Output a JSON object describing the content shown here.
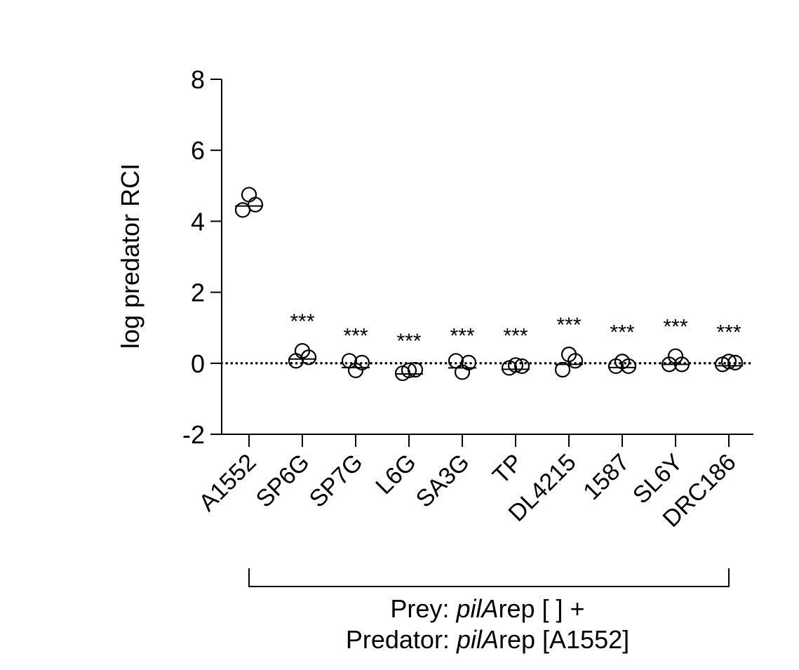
{
  "chart_data": {
    "type": "scatter",
    "ylabel": "log predator RCI",
    "ylim": [
      -2,
      8
    ],
    "yticks": [
      8,
      6,
      4,
      2,
      0,
      -2
    ],
    "categories": [
      "A1552",
      "SP6G",
      "SP7G",
      "L6G",
      "SA3G",
      "TP",
      "DL4215",
      "1587",
      "SL6Y",
      "DRC186"
    ],
    "replicates": [
      [
        4.75,
        4.2,
        4.35
      ],
      [
        0.35,
        -0.05,
        0.05
      ],
      [
        -0.2,
        -0.05,
        -0.1
      ],
      [
        -0.2,
        -0.4,
        -0.3
      ],
      [
        -0.25,
        -0.05,
        -0.1
      ],
      [
        -0.05,
        -0.25,
        -0.2
      ],
      [
        0.25,
        -0.3,
        -0.05
      ],
      [
        0.05,
        -0.2,
        -0.2
      ],
      [
        0.2,
        -0.15,
        -0.15
      ],
      [
        0.05,
        -0.15,
        -0.1
      ]
    ],
    "means": [
      4.43,
      0.12,
      -0.12,
      -0.3,
      -0.13,
      -0.17,
      -0.03,
      -0.12,
      -0.03,
      -0.07
    ],
    "significance": [
      "",
      "***",
      "***",
      "***",
      "***",
      "***",
      "***",
      "***",
      "***",
      "***"
    ],
    "reference_line": 0,
    "grid": false
  },
  "caption": {
    "line1_prefix": "Prey: ",
    "line1_italic": "pilA",
    "line1_suffix": "rep [ ] +",
    "line2_prefix": "Predator: ",
    "line2_italic": "pilA",
    "line2_suffix": "rep [A1552]"
  }
}
